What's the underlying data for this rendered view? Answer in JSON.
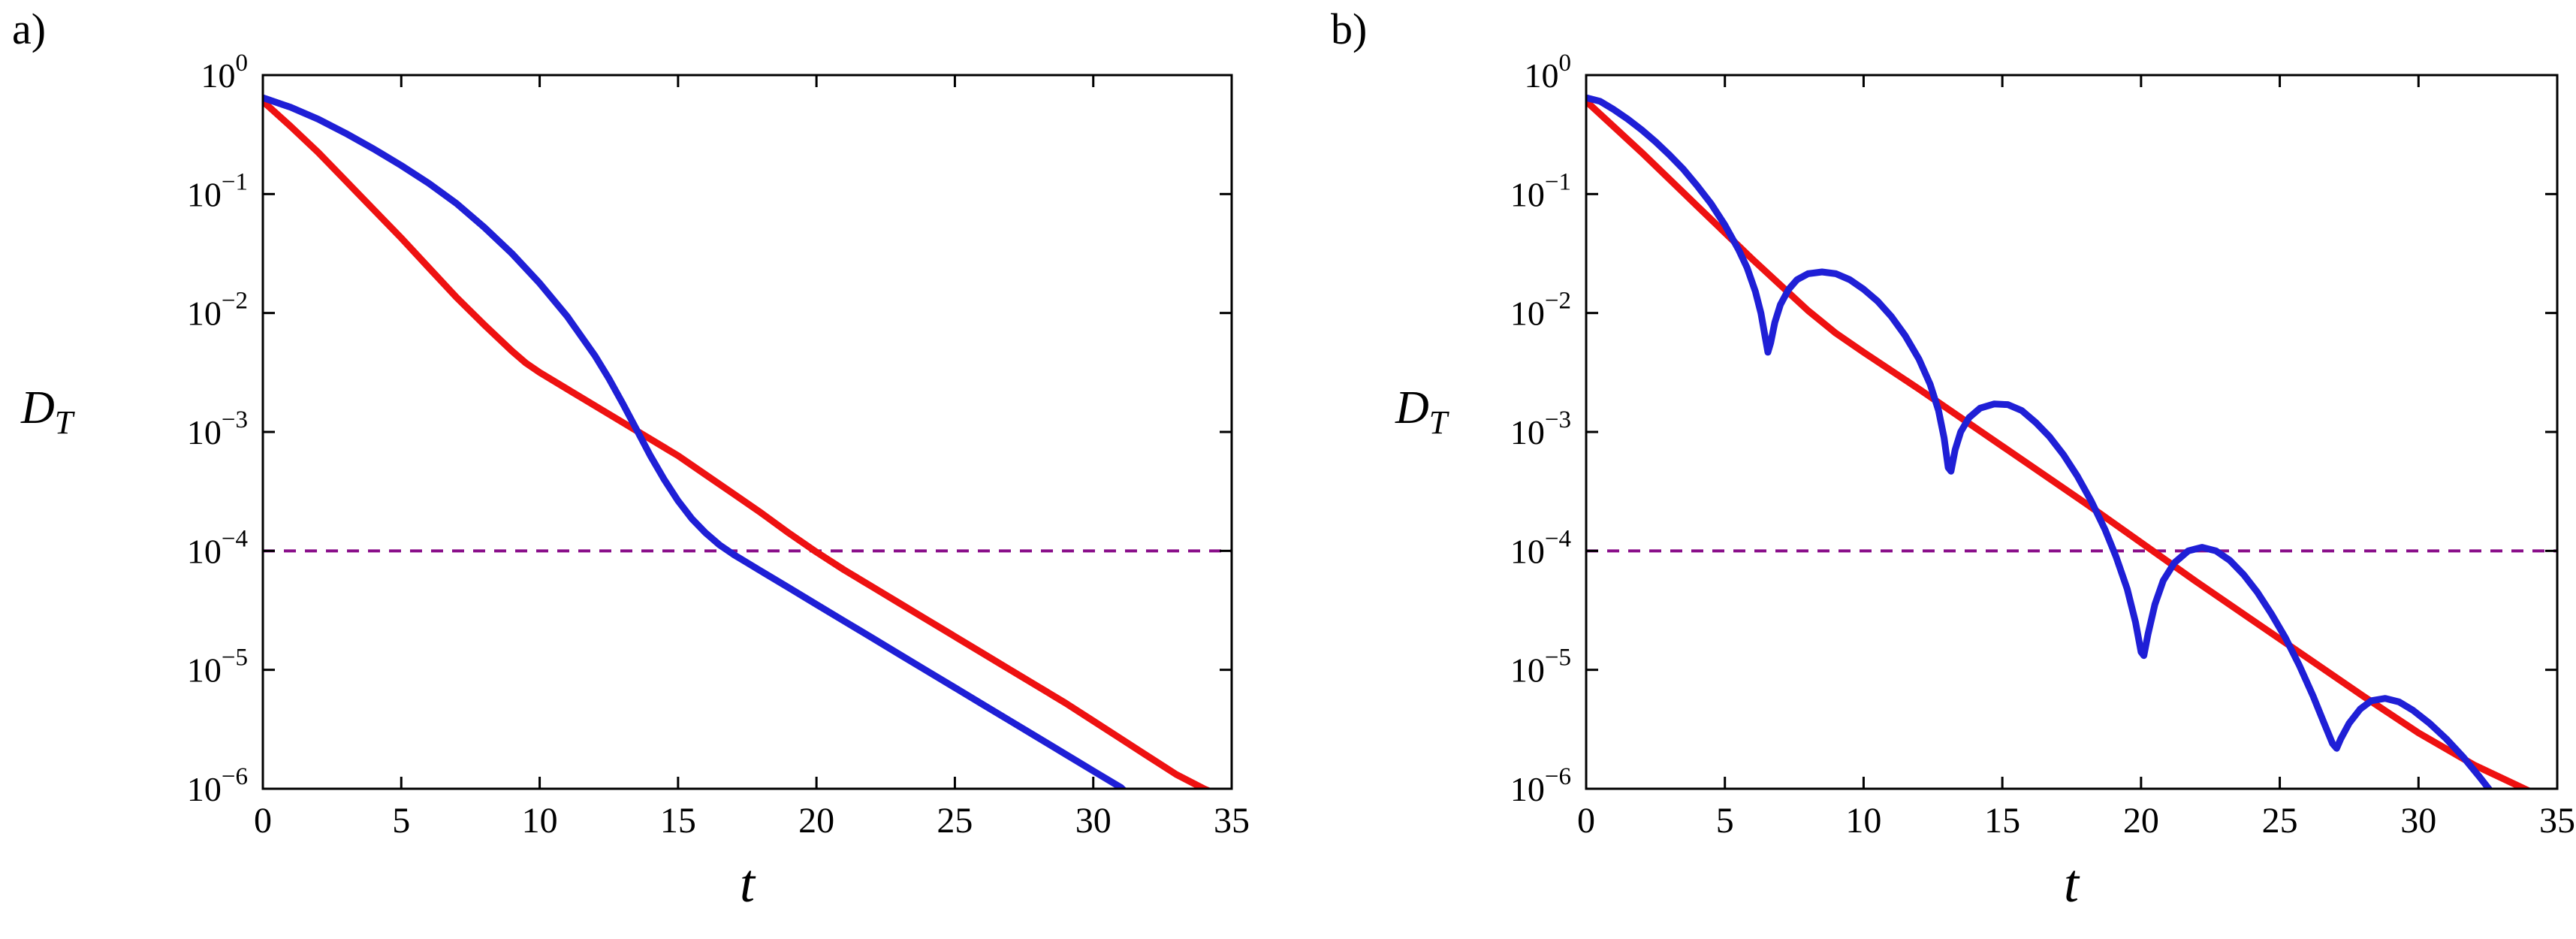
{
  "figure": {
    "background": "#ffffff",
    "panel_a_label": "a)",
    "panel_b_label": "b)"
  },
  "chart_data": {
    "type": "line",
    "y_scale": "log10",
    "note_units": "series points given as [t, log10(D_T)]",
    "panels": [
      {
        "label": "a)",
        "xlabel": "t",
        "ylabel": {
          "base": "D",
          "sub": "T"
        },
        "xlim": [
          0,
          35
        ],
        "ylim_log10": [
          -6,
          0
        ],
        "xticks": [
          0,
          5,
          10,
          15,
          20,
          25,
          30,
          35
        ],
        "ytick_exponents": [
          0,
          -1,
          -2,
          -3,
          -4,
          -5,
          -6
        ],
        "grid": false,
        "legend": "none",
        "threshold_line": {
          "value": 0.0001,
          "style": "dashed",
          "color": "#8a0f8a"
        },
        "series": [
          {
            "name": "red-curve",
            "color": "#ee1111",
            "log10_points": [
              [
                0,
                -0.22
              ],
              [
                1,
                -0.43
              ],
              [
                2,
                -0.65
              ],
              [
                3,
                -0.89
              ],
              [
                4,
                -1.13
              ],
              [
                5,
                -1.37
              ],
              [
                6,
                -1.62
              ],
              [
                7,
                -1.87
              ],
              [
                8,
                -2.1
              ],
              [
                9,
                -2.32
              ],
              [
                9.5,
                -2.42
              ],
              [
                10,
                -2.5
              ],
              [
                11,
                -2.64
              ],
              [
                12,
                -2.78
              ],
              [
                13,
                -2.92
              ],
              [
                14,
                -3.06
              ],
              [
                15,
                -3.2
              ],
              [
                16,
                -3.36
              ],
              [
                17,
                -3.52
              ],
              [
                18,
                -3.68
              ],
              [
                19,
                -3.85
              ],
              [
                20,
                -4.01
              ],
              [
                21,
                -4.16
              ],
              [
                22,
                -4.3
              ],
              [
                23,
                -4.44
              ],
              [
                24,
                -4.58
              ],
              [
                25,
                -4.72
              ],
              [
                26,
                -4.86
              ],
              [
                27,
                -5.0
              ],
              [
                28,
                -5.14
              ],
              [
                29,
                -5.28
              ],
              [
                30,
                -5.43
              ],
              [
                31,
                -5.58
              ],
              [
                32,
                -5.73
              ],
              [
                33,
                -5.88
              ],
              [
                34,
                -6.0
              ],
              [
                35,
                -6.1
              ]
            ]
          },
          {
            "name": "blue-curve",
            "color": "#1f1fd6",
            "log10_points": [
              [
                0,
                -0.19
              ],
              [
                1,
                -0.27
              ],
              [
                2,
                -0.37
              ],
              [
                3,
                -0.49
              ],
              [
                4,
                -0.62
              ],
              [
                5,
                -0.76
              ],
              [
                6,
                -0.91
              ],
              [
                7,
                -1.08
              ],
              [
                8,
                -1.28
              ],
              [
                9,
                -1.5
              ],
              [
                10,
                -1.75
              ],
              [
                11,
                -2.03
              ],
              [
                12,
                -2.36
              ],
              [
                12.5,
                -2.55
              ],
              [
                13,
                -2.76
              ],
              [
                13.5,
                -2.98
              ],
              [
                14,
                -3.2
              ],
              [
                14.5,
                -3.4
              ],
              [
                15,
                -3.58
              ],
              [
                15.5,
                -3.73
              ],
              [
                16,
                -3.85
              ],
              [
                16.5,
                -3.95
              ],
              [
                17,
                -4.03
              ],
              [
                17.5,
                -4.1
              ],
              [
                18,
                -4.17
              ],
              [
                19,
                -4.31
              ],
              [
                20,
                -4.45
              ],
              [
                21,
                -4.59
              ],
              [
                22,
                -4.73
              ],
              [
                23,
                -4.87
              ],
              [
                24,
                -5.01
              ],
              [
                25,
                -5.15
              ],
              [
                26,
                -5.29
              ],
              [
                27,
                -5.43
              ],
              [
                28,
                -5.57
              ],
              [
                29,
                -5.71
              ],
              [
                30,
                -5.85
              ],
              [
                31,
                -5.99
              ],
              [
                31.4,
                -6.08
              ]
            ]
          }
        ]
      },
      {
        "label": "b)",
        "xlabel": "t",
        "ylabel": {
          "base": "D",
          "sub": "T"
        },
        "xlim": [
          0,
          35
        ],
        "ylim_log10": [
          -6,
          0
        ],
        "xticks": [
          0,
          5,
          10,
          15,
          20,
          25,
          30,
          35
        ],
        "ytick_exponents": [
          0,
          -1,
          -2,
          -3,
          -4,
          -5,
          -6
        ],
        "grid": false,
        "legend": "none",
        "threshold_line": {
          "value": 0.0001,
          "style": "dashed",
          "color": "#8a0f8a"
        },
        "series": [
          {
            "name": "red-curve",
            "color": "#ee1111",
            "log10_points": [
              [
                0,
                -0.22
              ],
              [
                2,
                -0.65
              ],
              [
                4,
                -1.1
              ],
              [
                6,
                -1.55
              ],
              [
                8,
                -1.98
              ],
              [
                9,
                -2.17
              ],
              [
                10,
                -2.33
              ],
              [
                12,
                -2.64
              ],
              [
                14,
                -2.96
              ],
              [
                16,
                -3.28
              ],
              [
                18,
                -3.6
              ],
              [
                20,
                -3.93
              ],
              [
                22,
                -4.26
              ],
              [
                24,
                -4.58
              ],
              [
                26,
                -4.9
              ],
              [
                28,
                -5.22
              ],
              [
                30,
                -5.53
              ],
              [
                32,
                -5.8
              ],
              [
                34,
                -6.02
              ],
              [
                35,
                -6.12
              ]
            ]
          },
          {
            "name": "blue-curve",
            "color": "#1f1fd6",
            "log10_points": [
              [
                0,
                -0.19
              ],
              [
                0.5,
                -0.22
              ],
              [
                1,
                -0.29
              ],
              [
                1.5,
                -0.37
              ],
              [
                2,
                -0.46
              ],
              [
                2.5,
                -0.56
              ],
              [
                3,
                -0.67
              ],
              [
                3.5,
                -0.79
              ],
              [
                4,
                -0.93
              ],
              [
                4.5,
                -1.08
              ],
              [
                5,
                -1.26
              ],
              [
                5.5,
                -1.47
              ],
              [
                5.8,
                -1.62
              ],
              [
                6.1,
                -1.82
              ],
              [
                6.3,
                -2.0
              ],
              [
                6.45,
                -2.2
              ],
              [
                6.55,
                -2.33
              ],
              [
                6.65,
                -2.25
              ],
              [
                6.8,
                -2.08
              ],
              [
                7,
                -1.93
              ],
              [
                7.3,
                -1.8
              ],
              [
                7.6,
                -1.72
              ],
              [
                8,
                -1.67
              ],
              [
                8.5,
                -1.655
              ],
              [
                9,
                -1.67
              ],
              [
                9.5,
                -1.72
              ],
              [
                10,
                -1.8
              ],
              [
                10.5,
                -1.9
              ],
              [
                11,
                -2.03
              ],
              [
                11.5,
                -2.19
              ],
              [
                12,
                -2.39
              ],
              [
                12.4,
                -2.6
              ],
              [
                12.7,
                -2.82
              ],
              [
                12.9,
                -3.05
              ],
              [
                13.05,
                -3.3
              ],
              [
                13.15,
                -3.33
              ],
              [
                13.3,
                -3.15
              ],
              [
                13.5,
                -3.0
              ],
              [
                13.8,
                -2.88
              ],
              [
                14.2,
                -2.8
              ],
              [
                14.7,
                -2.765
              ],
              [
                15.2,
                -2.77
              ],
              [
                15.7,
                -2.82
              ],
              [
                16.2,
                -2.92
              ],
              [
                16.7,
                -3.04
              ],
              [
                17.2,
                -3.19
              ],
              [
                17.7,
                -3.37
              ],
              [
                18.2,
                -3.58
              ],
              [
                18.7,
                -3.82
              ],
              [
                19.1,
                -4.05
              ],
              [
                19.5,
                -4.32
              ],
              [
                19.8,
                -4.6
              ],
              [
                20,
                -4.85
              ],
              [
                20.1,
                -4.88
              ],
              [
                20.25,
                -4.7
              ],
              [
                20.5,
                -4.45
              ],
              [
                20.8,
                -4.25
              ],
              [
                21.2,
                -4.1
              ],
              [
                21.7,
                -4.0
              ],
              [
                22.2,
                -3.97
              ],
              [
                22.7,
                -4.0
              ],
              [
                23.2,
                -4.08
              ],
              [
                23.7,
                -4.2
              ],
              [
                24.2,
                -4.35
              ],
              [
                24.7,
                -4.53
              ],
              [
                25.2,
                -4.73
              ],
              [
                25.7,
                -4.96
              ],
              [
                26.2,
                -5.22
              ],
              [
                26.6,
                -5.45
              ],
              [
                26.9,
                -5.62
              ],
              [
                27.05,
                -5.66
              ],
              [
                27.2,
                -5.58
              ],
              [
                27.5,
                -5.45
              ],
              [
                27.9,
                -5.33
              ],
              [
                28.3,
                -5.26
              ],
              [
                28.8,
                -5.24
              ],
              [
                29.3,
                -5.27
              ],
              [
                29.8,
                -5.34
              ],
              [
                30.4,
                -5.45
              ],
              [
                31,
                -5.58
              ],
              [
                31.6,
                -5.73
              ],
              [
                32.2,
                -5.9
              ],
              [
                32.8,
                -6.08
              ],
              [
                33.2,
                -6.2
              ]
            ]
          }
        ]
      }
    ]
  }
}
